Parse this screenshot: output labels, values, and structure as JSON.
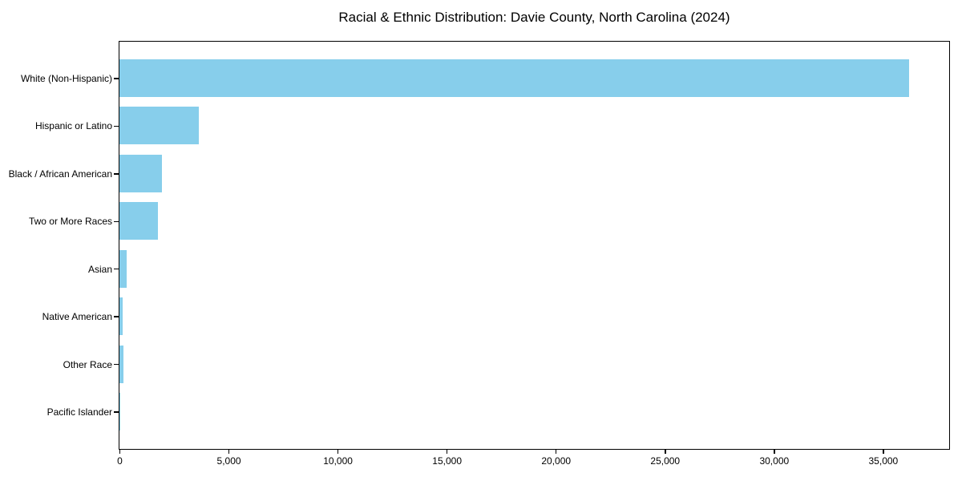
{
  "chart_data": {
    "type": "bar",
    "orientation": "horizontal",
    "title": "Racial & Ethnic Distribution: Davie County, North Carolina (2024)",
    "categories": [
      "White (Non-Hispanic)",
      "Hispanic or Latino",
      "Black / African American",
      "Two or More Races",
      "Asian",
      "Native American",
      "Other Race",
      "Pacific Islander"
    ],
    "values": [
      36200,
      3640,
      1960,
      1780,
      320,
      150,
      180,
      20
    ],
    "xlabel": "",
    "ylabel": "",
    "xlim": [
      0,
      38000
    ],
    "xticks": [
      0,
      5000,
      10000,
      15000,
      20000,
      25000,
      30000,
      35000
    ],
    "xtick_labels": [
      "0",
      "5,000",
      "10,000",
      "15,000",
      "20,000",
      "25,000",
      "30,000",
      "35,000"
    ],
    "bar_color": "#87CEEB",
    "spine_color": "#000000",
    "background": "#FFFFFF",
    "grid": false,
    "legend": null
  }
}
